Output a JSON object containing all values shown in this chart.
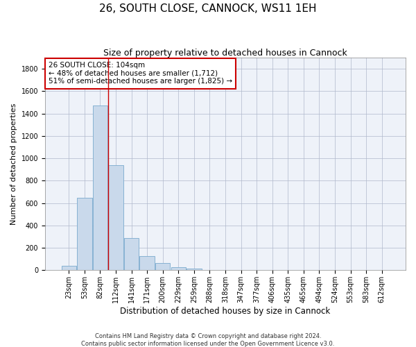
{
  "title": "26, SOUTH CLOSE, CANNOCK, WS11 1EH",
  "subtitle": "Size of property relative to detached houses in Cannock",
  "xlabel": "Distribution of detached houses by size in Cannock",
  "ylabel": "Number of detached properties",
  "bar_color": "#c9d9eb",
  "bar_edge_color": "#7aaace",
  "background_color": "#eef2f9",
  "grid_color": "#b0b8cc",
  "categories": [
    "23sqm",
    "53sqm",
    "82sqm",
    "112sqm",
    "141sqm",
    "171sqm",
    "200sqm",
    "229sqm",
    "259sqm",
    "288sqm",
    "318sqm",
    "347sqm",
    "377sqm",
    "406sqm",
    "435sqm",
    "465sqm",
    "494sqm",
    "524sqm",
    "553sqm",
    "583sqm",
    "612sqm"
  ],
  "values": [
    40,
    650,
    1470,
    940,
    290,
    125,
    65,
    25,
    15,
    0,
    0,
    0,
    0,
    0,
    0,
    0,
    0,
    0,
    0,
    0,
    0
  ],
  "annotation_line1": "26 SOUTH CLOSE: 104sqm",
  "annotation_line2": "← 48% of detached houses are smaller (1,712)",
  "annotation_line3": "51% of semi-detached houses are larger (1,825) →",
  "vline_index": 2.5,
  "vline_color": "#cc0000",
  "ylim": [
    0,
    1900
  ],
  "yticks": [
    0,
    200,
    400,
    600,
    800,
    1000,
    1200,
    1400,
    1600,
    1800
  ],
  "footnote": "Contains HM Land Registry data © Crown copyright and database right 2024.\nContains public sector information licensed under the Open Government Licence v3.0.",
  "title_fontsize": 11,
  "subtitle_fontsize": 9,
  "xlabel_fontsize": 8.5,
  "ylabel_fontsize": 8,
  "tick_fontsize": 7,
  "annotation_fontsize": 7.5,
  "footnote_fontsize": 6
}
